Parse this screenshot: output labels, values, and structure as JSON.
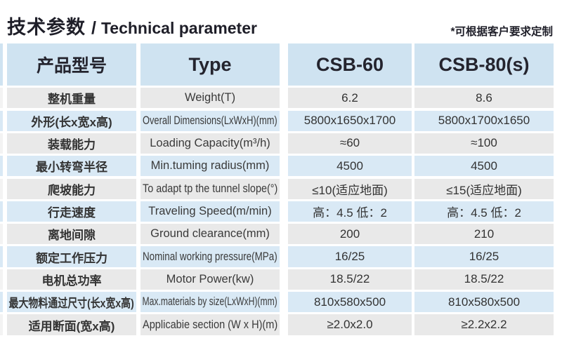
{
  "title": {
    "zh": "技术参数",
    "sep": "/",
    "en": "Technical parameter"
  },
  "note": "*可根据客户要求定制",
  "colors": {
    "header_bg": "#cfe3f1",
    "row_blue": "#d9e9f5",
    "row_gray": "#e9e9e9",
    "title_text": "#1e1e28",
    "cell_text": "#333333"
  },
  "chart_data": {
    "type": "table",
    "title": "技术参数 / Technical parameter",
    "columns": [
      "产品型号",
      "Type",
      "CSB-60",
      "CSB-80(s)"
    ],
    "rows": [
      {
        "zh": "整机重量",
        "en": "Weight(T)",
        "v1": "6.2",
        "v2": "8.6"
      },
      {
        "zh": "外形(长x宽x高)",
        "en": "Overall Dimensions(LxWxH)(mm)",
        "v1": "5800x1650x1700",
        "v2": "5800x1700x1650"
      },
      {
        "zh": "装载能力",
        "en": "Loading Capacity(m³/h)",
        "v1": "≈60",
        "v2": "≈100"
      },
      {
        "zh": "最小转弯半径",
        "en": "Min.tuming radius(mm)",
        "v1": "4500",
        "v2": "4500"
      },
      {
        "zh": "爬坡能力",
        "en": "To adapt tp the tunnel slope(°)",
        "v1": "≤10(适应地面)",
        "v2": "≤15(适应地面)"
      },
      {
        "zh": "行走速度",
        "en": "Traveling Speed(m/min)",
        "v1": "高：4.5 低：2",
        "v2": "高：4.5 低：2"
      },
      {
        "zh": "离地间隙",
        "en": "Ground clearance(mm)",
        "v1": "200",
        "v2": "210"
      },
      {
        "zh": "额定工作压力",
        "en": "Nominal working pressure(MPa)",
        "v1": "16/25",
        "v2": "16/25"
      },
      {
        "zh": "电机总功率",
        "en": "Motor Power(kw)",
        "v1": "18.5/22",
        "v2": "18.5/22"
      },
      {
        "zh": "最大物料通过尺寸(长x宽x高)",
        "en": "Max.materials by size(LxWxH)(mm)",
        "v1": "810x580x500",
        "v2": "810x580x500"
      },
      {
        "zh": "适用断面(宽x高)",
        "en": "Applicabie section (W x H)(m)",
        "v1": "≥2.0x2.0",
        "v2": "≥2.2x2.2"
      }
    ],
    "header": {
      "col_zh": "产品型号",
      "col_en": "Type",
      "model1": "CSB-60",
      "model2": "CSB-80(s)"
    }
  }
}
